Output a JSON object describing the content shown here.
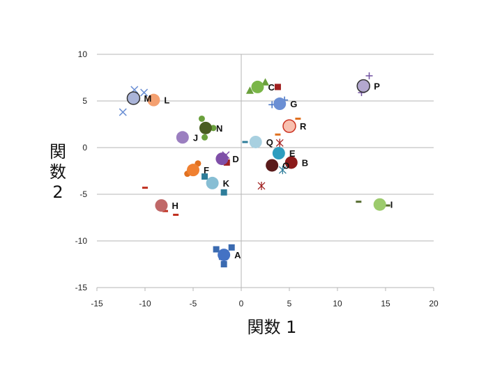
{
  "chart_data": {
    "type": "scatter",
    "xlabel": "関数 1",
    "ylabel": "関数 2",
    "xlim": [
      -15,
      20
    ],
    "ylim": [
      -15,
      10
    ],
    "xticks": [
      -15,
      -10,
      -5,
      0,
      5,
      10,
      15,
      20
    ],
    "yticks": [
      -15,
      -10,
      -5,
      0,
      5,
      10
    ],
    "grid": "horizontal",
    "centroids": [
      {
        "label": "A",
        "x": -1.8,
        "y": -11.5,
        "color": "#4472c4"
      },
      {
        "label": "B",
        "x": 5.2,
        "y": -1.6,
        "color": "#8b1a1a"
      },
      {
        "label": "C",
        "x": 1.7,
        "y": 6.5,
        "color": "#7ab648"
      },
      {
        "label": "D",
        "x": -2.0,
        "y": -1.2,
        "color": "#7f4fa8"
      },
      {
        "label": "E",
        "x": 3.9,
        "y": -0.6,
        "color": "#2e9dbf"
      },
      {
        "label": "F",
        "x": -5.0,
        "y": -2.4,
        "color": "#f08030"
      },
      {
        "label": "G",
        "x": 4.0,
        "y": 4.7,
        "color": "#6b8fd4"
      },
      {
        "label": "H",
        "x": -8.3,
        "y": -6.2,
        "color": "#c06868"
      },
      {
        "label": "I",
        "x": 14.4,
        "y": -6.1,
        "color": "#9ccb6c"
      },
      {
        "label": "J",
        "x": -6.1,
        "y": 1.1,
        "color": "#9b7fc0"
      },
      {
        "label": "K",
        "x": -3.0,
        "y": -3.8,
        "color": "#87bed4"
      },
      {
        "label": "L",
        "x": -9.1,
        "y": 5.1,
        "color": "#f4a070"
      },
      {
        "label": "M",
        "x": -11.2,
        "y": 5.3,
        "color": "#aab4d8",
        "outline": "#333333"
      },
      {
        "label": "N",
        "x": -3.7,
        "y": 2.1,
        "color": "#4a5e22"
      },
      {
        "label": "O",
        "x": 3.2,
        "y": -1.9,
        "color": "#5a1a1a"
      },
      {
        "label": "P",
        "x": 12.7,
        "y": 6.6,
        "color": "#b3a8cf",
        "outline": "#333333"
      },
      {
        "label": "Q",
        "x": 1.5,
        "y": 0.6,
        "color": "#a8d0e0"
      },
      {
        "label": "R",
        "x": 5.0,
        "y": 2.3,
        "color": "#f8c0b0",
        "outline": "#cc3322"
      }
    ],
    "cases": [
      {
        "x": -2.6,
        "y": -10.9,
        "marker": "square",
        "color": "#3a6ab0"
      },
      {
        "x": -1.0,
        "y": -10.7,
        "marker": "square",
        "color": "#3a6ab0"
      },
      {
        "x": -1.8,
        "y": -12.5,
        "marker": "square",
        "color": "#3a6ab0"
      },
      {
        "x": -2.0,
        "y": -11.7,
        "marker": "square",
        "color": "#3a6ab0"
      },
      {
        "x": -3.8,
        "y": -3.1,
        "marker": "square",
        "color": "#2e7d9a"
      },
      {
        "x": -1.8,
        "y": -4.8,
        "marker": "square",
        "color": "#2e7d9a"
      },
      {
        "x": 3.8,
        "y": 6.5,
        "marker": "square",
        "color": "#a02020"
      },
      {
        "x": -1.5,
        "y": -1.6,
        "marker": "square",
        "color": "#a02020"
      },
      {
        "x": 0.9,
        "y": 6.1,
        "marker": "triangle",
        "color": "#6aa03c"
      },
      {
        "x": 2.5,
        "y": 7.0,
        "marker": "triangle",
        "color": "#6aa03c"
      },
      {
        "x": 3.2,
        "y": 4.6,
        "marker": "plus",
        "color": "#4472c4"
      },
      {
        "x": 4.5,
        "y": 5.1,
        "marker": "plus",
        "color": "#4472c4"
      },
      {
        "x": 12.5,
        "y": 5.9,
        "marker": "plus",
        "color": "#7050a0"
      },
      {
        "x": 13.3,
        "y": 7.7,
        "marker": "plus",
        "color": "#7050a0"
      },
      {
        "x": -11.1,
        "y": 6.2,
        "marker": "x",
        "color": "#6b8fd4"
      },
      {
        "x": -10.1,
        "y": 5.9,
        "marker": "x",
        "color": "#6b8fd4"
      },
      {
        "x": -12.3,
        "y": 3.8,
        "marker": "x",
        "color": "#6b8fd4"
      },
      {
        "x": -1.6,
        "y": -0.8,
        "marker": "x",
        "color": "#7f4fa8"
      },
      {
        "x": 4.3,
        "y": -2.4,
        "marker": "star",
        "color": "#2e7d9a"
      },
      {
        "x": 2.1,
        "y": -4.1,
        "marker": "star",
        "color": "#a02020"
      },
      {
        "x": 4.0,
        "y": 0.5,
        "marker": "star",
        "color": "#a02020"
      },
      {
        "x": -4.1,
        "y": 3.1,
        "marker": "circle",
        "color": "#6aa03c"
      },
      {
        "x": -3.8,
        "y": 1.1,
        "marker": "circle",
        "color": "#6aa03c"
      },
      {
        "x": -2.9,
        "y": 2.1,
        "marker": "circle",
        "color": "#6aa03c"
      },
      {
        "x": -4.5,
        "y": -1.7,
        "marker": "circle",
        "color": "#e07020"
      },
      {
        "x": -5.6,
        "y": -2.8,
        "marker": "circle",
        "color": "#e07020"
      },
      {
        "x": -10.0,
        "y": -4.3,
        "marker": "dash",
        "color": "#c03020"
      },
      {
        "x": -7.9,
        "y": -6.8,
        "marker": "dash",
        "color": "#c03020"
      },
      {
        "x": -6.8,
        "y": -7.2,
        "marker": "dash",
        "color": "#c03020"
      },
      {
        "x": 3.8,
        "y": 1.4,
        "marker": "dash",
        "color": "#e07020"
      },
      {
        "x": 5.9,
        "y": 3.1,
        "marker": "dash",
        "color": "#e07020"
      },
      {
        "x": 12.2,
        "y": -5.8,
        "marker": "dash",
        "color": "#556b2f"
      },
      {
        "x": 15.2,
        "y": -6.2,
        "marker": "dash",
        "color": "#556b2f"
      },
      {
        "x": 0.4,
        "y": 0.6,
        "marker": "dash",
        "color": "#2e7d9a"
      }
    ]
  }
}
